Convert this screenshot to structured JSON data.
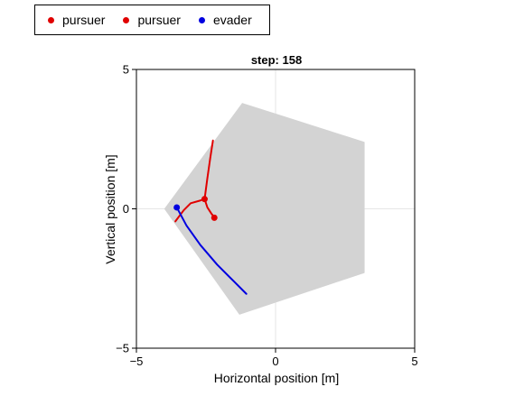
{
  "legend": {
    "entries": [
      {
        "label": "pursuer",
        "color": "#e00000"
      },
      {
        "label": "pursuer",
        "color": "#e00000"
      },
      {
        "label": "evader",
        "color": "#0000e0"
      }
    ]
  },
  "chart_data": {
    "type": "line",
    "title": "step: 158",
    "xlabel": "Horizontal position [m]",
    "ylabel": "Vertical position [m]",
    "xlim": [
      -5,
      5
    ],
    "ylim": [
      -5,
      5
    ],
    "xticks": [
      -5,
      0,
      5
    ],
    "yticks": [
      -5,
      0,
      5
    ],
    "xtick_labels": [
      "−5",
      "0",
      "5"
    ],
    "ytick_labels": [
      "−5",
      "0",
      "5"
    ],
    "grid": true,
    "legend_position": "top-left outside",
    "region": {
      "color": "#d3d3d3",
      "polygon": [
        [
          -1.2,
          3.8
        ],
        [
          3.2,
          2.4
        ],
        [
          3.2,
          -2.3
        ],
        [
          -1.3,
          -3.8
        ],
        [
          -4.0,
          0.0
        ]
      ]
    },
    "series": [
      {
        "name": "pursuer",
        "color": "#e00000",
        "path": [
          [
            -2.25,
            2.45
          ],
          [
            -2.35,
            1.8
          ],
          [
            -2.45,
            1.1
          ],
          [
            -2.55,
            0.35
          ],
          [
            -2.7,
            0.3
          ],
          [
            -3.05,
            0.2
          ],
          [
            -3.3,
            -0.05
          ],
          [
            -3.6,
            -0.45
          ]
        ],
        "current": [
          -2.55,
          0.35
        ]
      },
      {
        "name": "pursuer",
        "color": "#e00000",
        "path": [
          [
            -2.55,
            0.35
          ],
          [
            -2.45,
            0.05
          ],
          [
            -2.3,
            -0.18
          ],
          [
            -2.2,
            -0.3
          ]
        ],
        "current": [
          -2.2,
          -0.32
        ]
      },
      {
        "name": "evader",
        "color": "#0000e0",
        "path": [
          [
            -3.55,
            0.05
          ],
          [
            -3.2,
            -0.6
          ],
          [
            -2.7,
            -1.3
          ],
          [
            -2.1,
            -2.0
          ],
          [
            -1.5,
            -2.6
          ],
          [
            -1.05,
            -3.05
          ]
        ],
        "current": [
          -3.55,
          0.05
        ]
      }
    ]
  }
}
